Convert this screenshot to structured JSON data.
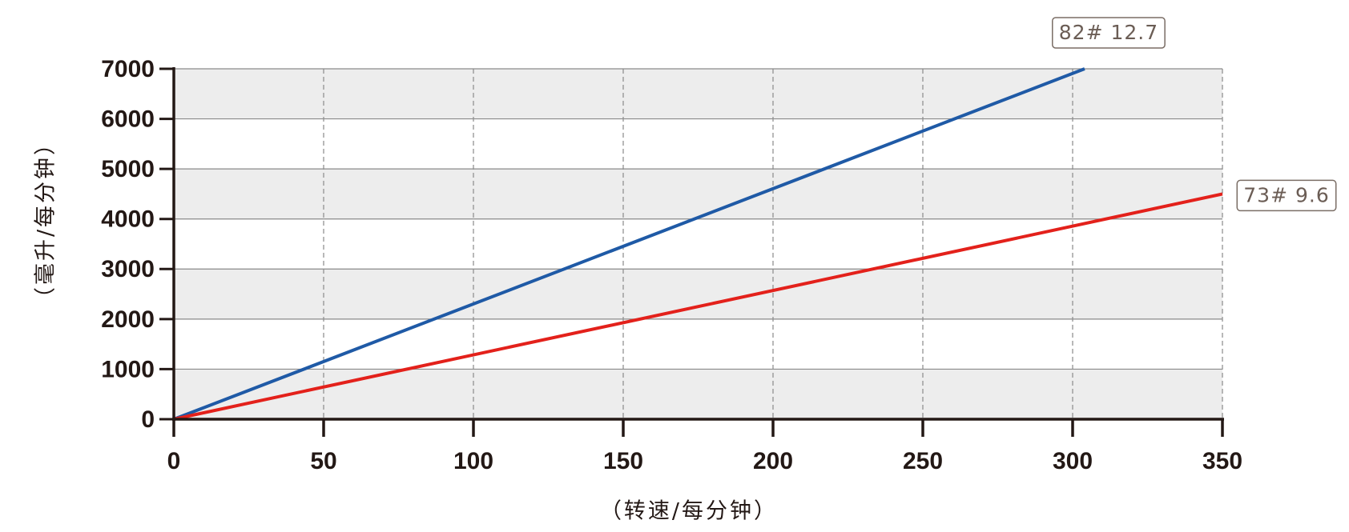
{
  "chart_data": {
    "type": "line",
    "x_label": "（转速/每分钟）",
    "y_label": "（毫升/每分钟）",
    "xlim": [
      0,
      350
    ],
    "xticks": [
      0,
      50,
      100,
      150,
      200,
      250,
      300,
      350
    ],
    "ylim": [
      0,
      7000
    ],
    "yticks": [
      0,
      1000,
      2000,
      3000,
      4000,
      5000,
      6000,
      7000
    ],
    "grid": true,
    "series": [
      {
        "name": "82# 12.7",
        "color": "#1f5aa6",
        "x": [
          0,
          304
        ],
        "values": [
          0,
          7000
        ]
      },
      {
        "name": "73# 9.6",
        "color": "#e3211b",
        "x": [
          0,
          350
        ],
        "values": [
          0,
          4500
        ]
      }
    ]
  }
}
